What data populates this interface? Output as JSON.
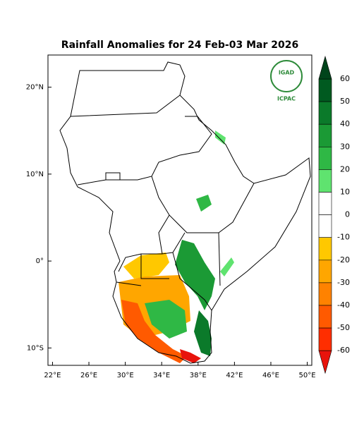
{
  "title": "Rainfall Anomalies for 24 Feb-03 Mar 2026",
  "logo": {
    "top": "IGAD",
    "bottom": "ICPAC"
  },
  "map": {
    "xlim": [
      21.5,
      50.5
    ],
    "ylim": [
      -12,
      23.7
    ],
    "xticks": [
      {
        "value": 22,
        "label": "22°E"
      },
      {
        "value": 26,
        "label": "26°E"
      },
      {
        "value": 30,
        "label": "30°E"
      },
      {
        "value": 34,
        "label": "34°E"
      },
      {
        "value": 38,
        "label": "38°E"
      },
      {
        "value": 42,
        "label": "42°E"
      },
      {
        "value": 46,
        "label": "46°E"
      },
      {
        "value": 50,
        "label": "50°E"
      }
    ],
    "yticks": [
      {
        "value": 20,
        "label": "20°N"
      },
      {
        "value": 10,
        "label": "10°N"
      },
      {
        "value": 0,
        "label": "0°"
      },
      {
        "value": -10,
        "label": "10°S"
      }
    ]
  },
  "colorbar": {
    "ticks": [
      60,
      50,
      40,
      30,
      20,
      10,
      0,
      -10,
      -20,
      -30,
      -40,
      -50,
      -60
    ],
    "over": "#00441b",
    "under": "#e8140c",
    "colors": [
      "#005a20",
      "#0b7a2a",
      "#1b9a35",
      "#2fb845",
      "#5fe36f",
      "#ffffff",
      "#ffffff",
      "#ffc800",
      "#ffa600",
      "#ff8200",
      "#ff5a00",
      "#ff2e00"
    ]
  }
}
